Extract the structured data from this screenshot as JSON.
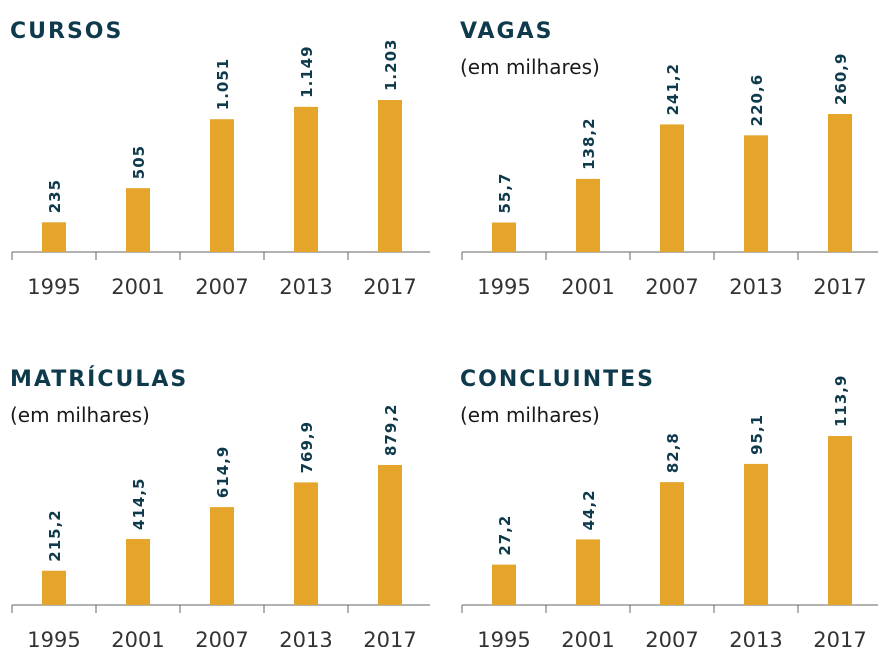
{
  "chart_data": [
    {
      "type": "bar",
      "title": "CURSOS",
      "categories": [
        "1995",
        "2001",
        "2007",
        "2013",
        "2017"
      ],
      "values": [
        235,
        505,
        1051,
        1149,
        1203
      ],
      "value_labels": [
        "235",
        "505",
        "1.051",
        "1.149",
        "1.203"
      ],
      "color": "#e5a52a"
    },
    {
      "type": "bar",
      "title": "VAGAS",
      "subtitle": "(em milhares)",
      "categories": [
        "1995",
        "2001",
        "2007",
        "2013",
        "2017"
      ],
      "values": [
        55.7,
        138.2,
        241.2,
        220.6,
        260.9
      ],
      "value_labels": [
        "55,7",
        "138,2",
        "241,2",
        "220,6",
        "260,9"
      ],
      "color": "#e5a52a"
    },
    {
      "type": "bar",
      "title": "MATRÍCULAS",
      "subtitle": "(em milhares)",
      "categories": [
        "1995",
        "2001",
        "2007",
        "2013",
        "2017"
      ],
      "values": [
        215.2,
        414.5,
        614.9,
        769.9,
        879.2
      ],
      "value_labels": [
        "215,2",
        "414,5",
        "614,9",
        "769,9",
        "879,2"
      ],
      "color": "#e5a52a"
    },
    {
      "type": "bar",
      "title": "CONCLUINTES",
      "subtitle": "(em milhares)",
      "categories": [
        "1995",
        "2001",
        "2007",
        "2013",
        "2017"
      ],
      "values": [
        27.2,
        44.2,
        82.8,
        95.1,
        113.9
      ],
      "value_labels": [
        "27,2",
        "44,2",
        "82,8",
        "95,1",
        "113,9"
      ],
      "color": "#e5a52a"
    }
  ]
}
